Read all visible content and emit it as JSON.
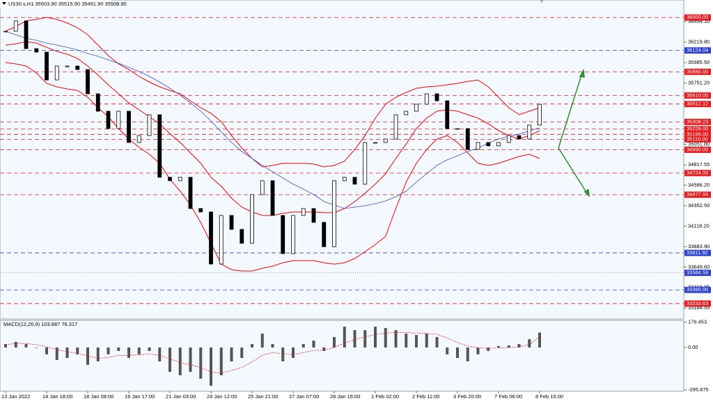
{
  "header": "US30.s,H1  35503.90 35515.90 35491.90 35508.90",
  "chart_data": [
    {
      "type": "candlestick",
      "categories": [
        "13 Jan 2022",
        null,
        null,
        null,
        "14 Jan 18:00",
        null,
        null,
        null,
        "18 Jan 08:00",
        null,
        null,
        null,
        "19 Jan 17:00",
        null,
        null,
        null,
        "21 Jan 03:00",
        null,
        null,
        null,
        "24 Jan 12:00",
        null,
        null,
        null,
        "25 Jan 21:00",
        null,
        null,
        null,
        "27 Jan 07:00",
        null,
        null,
        null,
        "28 Jan 16:00",
        null,
        null,
        null,
        "1 Feb 02:00",
        null,
        null,
        null,
        "2 Feb 11:00",
        null,
        null,
        null,
        "3 Feb 20:00",
        null,
        null,
        null,
        "7 Feb 06:00",
        null,
        null,
        null,
        "8 Feb 15:00"
      ],
      "values": [
        36343,
        36462,
        36145,
        36105,
        35787,
        35946,
        35946,
        35906,
        35629,
        35430,
        35232,
        35430,
        35073,
        35152,
        35390,
        34676,
        34637,
        34676,
        34319,
        34280,
        33685,
        34240,
        34081,
        33922,
        34478,
        34637,
        34240,
        33804,
        34240,
        34319,
        34161,
        33883,
        34637,
        34676,
        34597,
        35073,
        35073,
        35113,
        35390,
        35430,
        35510,
        35629,
        35549,
        35232,
        35232,
        34994,
        35073,
        35034,
        35073,
        35152,
        35113,
        35272,
        35510
      ],
      "color": "#000000",
      "bands": {
        "color": "#ff0000",
        "upper": [
          36343,
          36398,
          36462,
          36478,
          36502,
          36478,
          36438,
          36383,
          36303,
          36184,
          36065,
          35970,
          35906,
          35827,
          35764,
          35708,
          35668,
          35629,
          35549,
          35470,
          35406,
          35311,
          35152,
          35010,
          34891,
          34795,
          34811,
          34835,
          34835,
          34835,
          34827,
          34795,
          34811,
          34859,
          34994,
          35152,
          35351,
          35510,
          35589,
          35645,
          35692,
          35708,
          35716,
          35732,
          35748,
          35771,
          35787,
          35708,
          35589,
          35470,
          35391,
          35430,
          35470
        ],
        "middle": [
          36184,
          36200,
          36224,
          36208,
          36160,
          36113,
          36081,
          36033,
          35946,
          35843,
          35732,
          35629,
          35525,
          35446,
          35367,
          35287,
          35176,
          35073,
          34954,
          34835,
          34676,
          34573,
          34438,
          34335,
          34280,
          34240,
          34240,
          34264,
          34280,
          34280,
          34280,
          34272,
          34272,
          34319,
          34398,
          34494,
          34597,
          34716,
          34891,
          35057,
          35232,
          35351,
          35430,
          35446,
          35430,
          35391,
          35351,
          35287,
          35208,
          35152,
          35113,
          35152,
          35208
        ],
        "lower": [
          35986,
          35970,
          35946,
          35867,
          35748,
          35708,
          35684,
          35668,
          35589,
          35470,
          35367,
          35232,
          35113,
          35018,
          34938,
          34835,
          34653,
          34518,
          34359,
          34160,
          33922,
          33684,
          33621,
          33605,
          33605,
          33637,
          33661,
          33700,
          33724,
          33724,
          33724,
          33700,
          33684,
          33700,
          33748,
          33827,
          33907,
          34002,
          34319,
          34621,
          34835,
          34994,
          35113,
          35152,
          35073,
          34954,
          34835,
          34811,
          34835,
          34875,
          34914,
          34938,
          34891
        ]
      },
      "ma": {
        "color": "#3a4fd6",
        "values": [
          36343,
          36303,
          36264,
          36240,
          36208,
          36184,
          36160,
          36129,
          36089,
          36057,
          36017,
          35978,
          35930,
          35883,
          35827,
          35764,
          35692,
          35613,
          35525,
          35430,
          35319,
          35192,
          35073,
          34970,
          34891,
          34811,
          34740,
          34668,
          34597,
          34541,
          34478,
          34398,
          34359,
          34319,
          34335,
          34351,
          34375,
          34406,
          34454,
          34518,
          34621,
          34716,
          34811,
          34875,
          34922,
          34970,
          35010,
          35065,
          35113,
          35144,
          35168,
          35208,
          35240
        ]
      },
      "ylim": [
        33057.6,
        36700.1
      ],
      "yticks": [
        {
          "value": 36454.1,
          "label": "36454.10"
        },
        {
          "value": 36219.8,
          "label": "36219.80"
        },
        {
          "value": 35985.5,
          "label": "35985.50"
        },
        {
          "value": 35751.2,
          "label": "35751.20"
        },
        {
          "value": 35051.8,
          "label": "35051.80"
        },
        34817.55,
        {
          "value": 34586.2,
          "label": "34586.20"
        },
        {
          "value": 34352.5,
          "label": "34352.50"
        },
        {
          "value": 34118.2,
          "label": "34118.20"
        },
        {
          "value": 33883.9,
          "label": "33883.90"
        },
        {
          "value": 33649.6,
          "label": "33649.60"
        },
        33418.85,
        33184.55
      ],
      "levels": [
        {
          "value": 36500,
          "label": "36500.00",
          "color": "#e8191c",
          "label_color": "#e8191c",
          "dash": "6 4"
        },
        {
          "value": 36124.04,
          "label": "36124.04",
          "color": "#2a3fd4",
          "label_color": "#2a3fd4",
          "dash": "6 4"
        },
        {
          "value": 35880,
          "label": "35880.00",
          "color": "#e8191c",
          "label_color": "#e8191c",
          "dash": "6 4"
        },
        {
          "value": 35610,
          "label": "35610.00",
          "color": "#e8191c",
          "label_color": "#e8191c",
          "dash": "6 4"
        },
        {
          "value": 35512.12,
          "label": "35512.12",
          "color": "#e8191c",
          "label_color": "#e8191c",
          "dash": "6 4"
        },
        {
          "value": 35308.23,
          "label": "35308.23",
          "color": "#e8191c",
          "label_color": "#e8191c",
          "dash": "6 4"
        },
        {
          "value": 35226,
          "label": "35226.00",
          "color": "#e8191c",
          "label_color": "#e8191c",
          "dash": "6 4"
        },
        {
          "value": 35166,
          "label": "35166.00",
          "color": "#e8191c",
          "label_color": "#e8191c",
          "dash": "6 4"
        },
        {
          "value": 35110,
          "label": "35110.00",
          "color": "#e8191c",
          "label_color": "#e8191c",
          "dash": "6 4"
        },
        {
          "value": 34990,
          "label": "34990.00",
          "color": "#e8191c",
          "label_color": "#e8191c",
          "dash": "6 4"
        },
        {
          "value": 34724,
          "label": "34724.00",
          "color": "#e8191c",
          "label_color": "#e8191c",
          "dash": "6 4"
        },
        {
          "value": 34477,
          "label": "34477.00",
          "color": "#e8191c",
          "label_color": "#e8191c",
          "dash": "6 4"
        },
        {
          "value": 33811.92,
          "label": "33811.92",
          "color": "#2a3fd4",
          "label_color": "#2a3fd4",
          "dash": "6 4"
        },
        {
          "value": 33584.59,
          "label": "33584.59",
          "color": "#777777",
          "label_color": "#2a3fd4",
          "dash": "1 2"
        },
        {
          "value": 33390,
          "label": "33390.00",
          "color": "#2a3fd4",
          "label_color": "#2a3fd4",
          "dash": "6 4"
        },
        {
          "value": 33233.63,
          "label": "33233.63",
          "color": "#e8191c",
          "label_color": "#e8191c",
          "dash": "6 4"
        }
      ]
    },
    {
      "type": "macd",
      "title": "MACD(12,26,9) 103.887 76.317",
      "histogram": {
        "color": "#555555",
        "values": [
          24,
          39,
          24,
          0,
          -48,
          -87,
          -73,
          -48,
          -121,
          -97,
          -48,
          -24,
          -73,
          -48,
          -24,
          -97,
          -170,
          -194,
          -170,
          -218,
          -267,
          -194,
          -97,
          -73,
          24,
          97,
          24,
          -97,
          -73,
          24,
          48,
          -24,
          73,
          145,
          121,
          121,
          145,
          136,
          121,
          97,
          87,
          97,
          73,
          -48,
          -73,
          -97,
          -48,
          -24,
          10,
          15,
          24,
          58,
          103.887
        ]
      },
      "signal": {
        "color": "#e8191c",
        "values": [
          20,
          28,
          28,
          20,
          5,
          -15,
          -30,
          -40,
          -60,
          -75,
          -70,
          -55,
          -55,
          -52,
          -45,
          -55,
          -80,
          -105,
          -120,
          -140,
          -170,
          -180,
          -160,
          -140,
          -100,
          -55,
          -35,
          -45,
          -50,
          -35,
          -20,
          -20,
          0,
          30,
          55,
          75,
          90,
          100,
          105,
          105,
          100,
          98,
          93,
          65,
          35,
          10,
          -2,
          -6,
          -3,
          0,
          5,
          20,
          76.317
        ]
      },
      "ylim": [
        -305.5,
        189.1
      ],
      "yticks": [
        176.453,
        {
          "value": 0,
          "label": "0.00"
        },
        -295.875
      ]
    }
  ]
}
